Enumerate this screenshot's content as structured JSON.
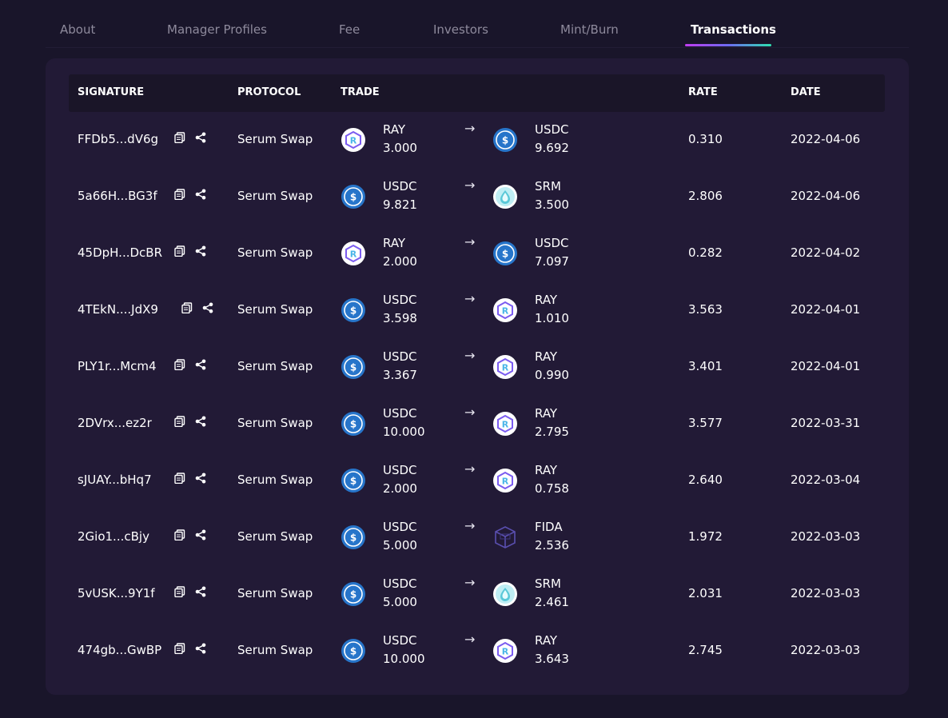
{
  "tabs": [
    {
      "label": "About",
      "active": false
    },
    {
      "label": "Manager Profiles",
      "active": false
    },
    {
      "label": "Fee",
      "active": false
    },
    {
      "label": "Investors",
      "active": false
    },
    {
      "label": "Mint/Burn",
      "active": false
    },
    {
      "label": "Transactions",
      "active": true
    }
  ],
  "colors": {
    "background": "#19152a",
    "panel": "#221a36",
    "header": "#1a1528",
    "tab_inactive": "#8e8a9c",
    "underline_gradient": [
      "#c03cf0",
      "#6e6bf2",
      "#2de0b0"
    ]
  },
  "table": {
    "headers": {
      "signature": "SIGNATURE",
      "protocol": "PROTOCOL",
      "trade": "TRADE",
      "rate": "RATE",
      "date": "DATE"
    },
    "rows": [
      {
        "signature": "FFDb5...dV6g",
        "protocol": "Serum Swap",
        "from": {
          "token": "RAY",
          "amount": "3.000",
          "icon": "ray-icon"
        },
        "to": {
          "token": "USDC",
          "amount": "9.692",
          "icon": "usdc-icon"
        },
        "rate": "0.310",
        "date": "2022-04-06"
      },
      {
        "signature": "5a66H...BG3f",
        "protocol": "Serum Swap",
        "from": {
          "token": "USDC",
          "amount": "9.821",
          "icon": "usdc-icon"
        },
        "to": {
          "token": "SRM",
          "amount": "3.500",
          "icon": "srm-icon"
        },
        "rate": "2.806",
        "date": "2022-04-06"
      },
      {
        "signature": "45DpH...DcBR",
        "protocol": "Serum Swap",
        "from": {
          "token": "RAY",
          "amount": "2.000",
          "icon": "ray-icon"
        },
        "to": {
          "token": "USDC",
          "amount": "7.097",
          "icon": "usdc-icon"
        },
        "rate": "0.282",
        "date": "2022-04-02"
      },
      {
        "signature": "4TEkN....JdX9",
        "protocol": "Serum Swap",
        "from": {
          "token": "USDC",
          "amount": "3.598",
          "icon": "usdc-icon"
        },
        "to": {
          "token": "RAY",
          "amount": "1.010",
          "icon": "ray-icon"
        },
        "rate": "3.563",
        "date": "2022-04-01"
      },
      {
        "signature": "PLY1r...Mcm4",
        "protocol": "Serum Swap",
        "from": {
          "token": "USDC",
          "amount": "3.367",
          "icon": "usdc-icon"
        },
        "to": {
          "token": "RAY",
          "amount": "0.990",
          "icon": "ray-icon"
        },
        "rate": "3.401",
        "date": "2022-04-01"
      },
      {
        "signature": "2DVrx...ez2r",
        "protocol": "Serum Swap",
        "from": {
          "token": "USDC",
          "amount": "10.000",
          "icon": "usdc-icon"
        },
        "to": {
          "token": "RAY",
          "amount": "2.795",
          "icon": "ray-icon"
        },
        "rate": "3.577",
        "date": "2022-03-31"
      },
      {
        "signature": "sJUAY...bHq7",
        "protocol": "Serum Swap",
        "from": {
          "token": "USDC",
          "amount": "2.000",
          "icon": "usdc-icon"
        },
        "to": {
          "token": "RAY",
          "amount": "0.758",
          "icon": "ray-icon"
        },
        "rate": "2.640",
        "date": "2022-03-04"
      },
      {
        "signature": "2Gio1...cBjy",
        "protocol": "Serum Swap",
        "from": {
          "token": "USDC",
          "amount": "5.000",
          "icon": "usdc-icon"
        },
        "to": {
          "token": "FIDA",
          "amount": "2.536",
          "icon": "fida-icon"
        },
        "rate": "1.972",
        "date": "2022-03-03"
      },
      {
        "signature": "5vUSK...9Y1f",
        "protocol": "Serum Swap",
        "from": {
          "token": "USDC",
          "amount": "5.000",
          "icon": "usdc-icon"
        },
        "to": {
          "token": "SRM",
          "amount": "2.461",
          "icon": "srm-icon"
        },
        "rate": "2.031",
        "date": "2022-03-03"
      },
      {
        "signature": "474gb...GwBP",
        "protocol": "Serum Swap",
        "from": {
          "token": "USDC",
          "amount": "10.000",
          "icon": "usdc-icon"
        },
        "to": {
          "token": "RAY",
          "amount": "3.643",
          "icon": "ray-icon"
        },
        "rate": "2.745",
        "date": "2022-03-03"
      }
    ]
  }
}
